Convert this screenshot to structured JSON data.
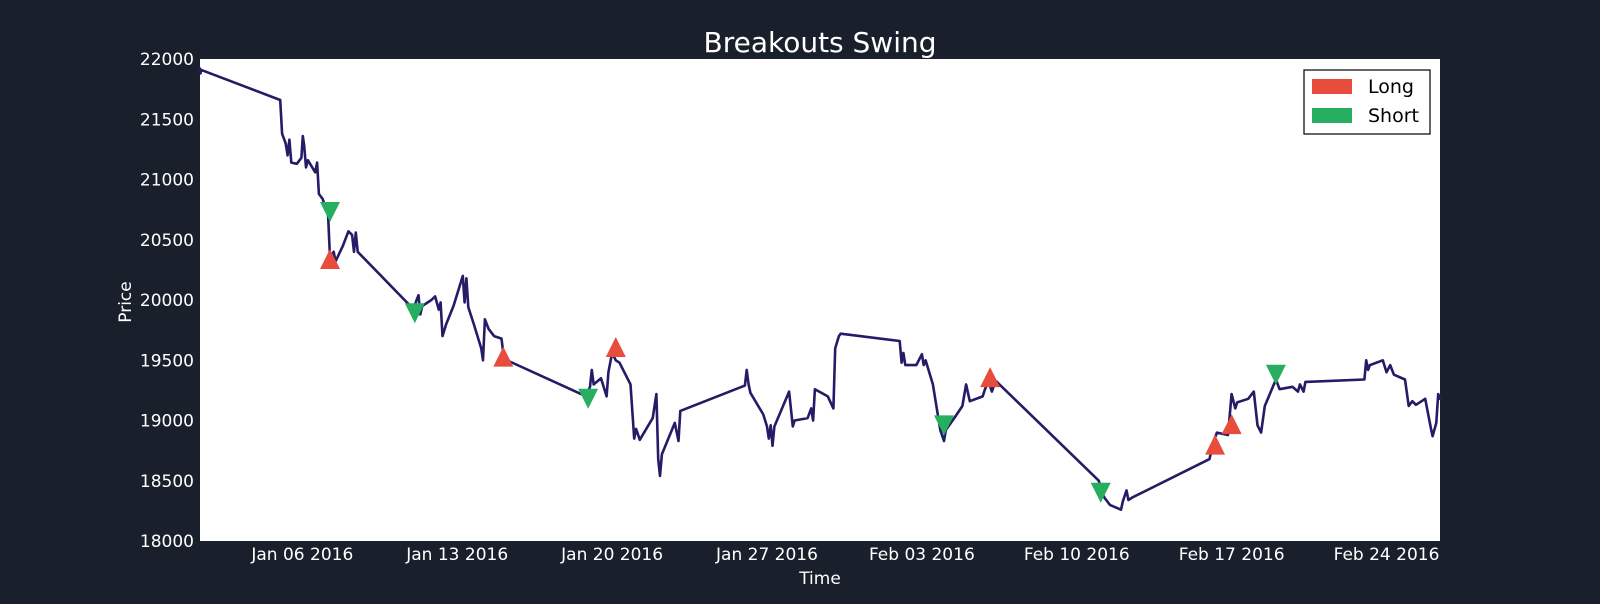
{
  "colors": {
    "background": "#19202b",
    "plot_background": "#ffffff",
    "price_line": "#241c66",
    "long_marker": "#e74c3c",
    "short_marker": "#27ae60",
    "text": "#ffffff"
  },
  "chart_data": {
    "type": "line",
    "title": "Breakouts Swing",
    "xlabel": "Time",
    "ylabel": "Price",
    "x_scale": "date",
    "xlim": [
      "2016-01-01 09:00",
      "2016-02-26 10:00"
    ],
    "ylim": [
      18000,
      22000
    ],
    "yticks": [
      18000,
      18500,
      19000,
      19500,
      20000,
      20500,
      21000,
      21500,
      22000
    ],
    "xticks": [
      {
        "date": "2016-01-06",
        "label": "Jan 06 2016"
      },
      {
        "date": "2016-01-13",
        "label": "Jan 13 2016"
      },
      {
        "date": "2016-01-20",
        "label": "Jan 20 2016"
      },
      {
        "date": "2016-01-27",
        "label": "Jan 27 2016"
      },
      {
        "date": "2016-02-03",
        "label": "Feb 03 2016"
      },
      {
        "date": "2016-02-10",
        "label": "Feb 10 2016"
      },
      {
        "date": "2016-02-17",
        "label": "Feb 17 2016"
      },
      {
        "date": "2016-02-24",
        "label": "Feb 24 2016"
      }
    ],
    "grid": false,
    "legend_position": "top-right",
    "series": [
      {
        "name": "Price",
        "points": [
          [
            "2016-01-01 09:00",
            21920
          ],
          [
            "2016-01-01 09:30",
            21880
          ],
          [
            "2016-01-01 10:00",
            21910
          ],
          [
            "2016-01-05 00:00",
            21660
          ],
          [
            "2016-01-05 02:00",
            21380
          ],
          [
            "2016-01-05 06:00",
            21300
          ],
          [
            "2016-01-05 08:00",
            21200
          ],
          [
            "2016-01-05 10:00",
            21330
          ],
          [
            "2016-01-05 12:00",
            21140
          ],
          [
            "2016-01-05 18:00",
            21130
          ],
          [
            "2016-01-05 23:00",
            21180
          ],
          [
            "2016-01-06 00:30",
            21360
          ],
          [
            "2016-01-06 02:00",
            21280
          ],
          [
            "2016-01-06 04:00",
            21100
          ],
          [
            "2016-01-06 06:00",
            21160
          ],
          [
            "2016-01-06 14:00",
            21060
          ],
          [
            "2016-01-06 16:00",
            21140
          ],
          [
            "2016-01-06 18:00",
            20880
          ],
          [
            "2016-01-06 22:00",
            20840
          ],
          [
            "2016-01-07 04:00",
            20700
          ],
          [
            "2016-01-07 06:00",
            20350
          ],
          [
            "2016-01-07 10:00",
            20400
          ],
          [
            "2016-01-07 12:00",
            20320
          ],
          [
            "2016-01-07 20:00",
            20450
          ],
          [
            "2016-01-08 02:00",
            20570
          ],
          [
            "2016-01-08 06:00",
            20540
          ],
          [
            "2016-01-08 08:00",
            20400
          ],
          [
            "2016-01-08 10:00",
            20560
          ],
          [
            "2016-01-08 12:00",
            20400
          ],
          [
            "2016-01-11 01:00",
            19920
          ],
          [
            "2016-01-11 03:00",
            19980
          ],
          [
            "2016-01-11 06:00",
            20040
          ],
          [
            "2016-01-11 08:00",
            19880
          ],
          [
            "2016-01-11 10:00",
            19950
          ],
          [
            "2016-01-11 20:00",
            20000
          ],
          [
            "2016-01-12 00:00",
            20030
          ],
          [
            "2016-01-12 04:00",
            19920
          ],
          [
            "2016-01-12 06:00",
            19980
          ],
          [
            "2016-01-12 08:00",
            19700
          ],
          [
            "2016-01-12 12:00",
            19800
          ],
          [
            "2016-01-12 20:00",
            19950
          ],
          [
            "2016-01-13 02:00",
            20100
          ],
          [
            "2016-01-13 06:00",
            20200
          ],
          [
            "2016-01-13 08:00",
            19980
          ],
          [
            "2016-01-13 10:00",
            20180
          ],
          [
            "2016-01-13 12:00",
            19940
          ],
          [
            "2016-01-13 18:00",
            19800
          ],
          [
            "2016-01-14 02:00",
            19600
          ],
          [
            "2016-01-14 04:00",
            19500
          ],
          [
            "2016-01-14 06:00",
            19840
          ],
          [
            "2016-01-14 10:00",
            19760
          ],
          [
            "2016-01-14 16:00",
            19700
          ],
          [
            "2016-01-15 00:00",
            19680
          ],
          [
            "2016-01-15 02:00",
            19560
          ],
          [
            "2016-01-15 06:00",
            19500
          ],
          [
            "2016-01-18 20:00",
            19200
          ],
          [
            "2016-01-19 00:00",
            19280
          ],
          [
            "2016-01-19 02:00",
            19420
          ],
          [
            "2016-01-19 04:00",
            19300
          ],
          [
            "2016-01-19 12:00",
            19350
          ],
          [
            "2016-01-19 18:00",
            19200
          ],
          [
            "2016-01-19 20:00",
            19400
          ],
          [
            "2016-01-20 00:00",
            19560
          ],
          [
            "2016-01-20 04:00",
            19500
          ],
          [
            "2016-01-20 08:00",
            19480
          ],
          [
            "2016-01-20 20:00",
            19300
          ],
          [
            "2016-01-21 00:00",
            18850
          ],
          [
            "2016-01-21 02:00",
            18930
          ],
          [
            "2016-01-21 06:00",
            18840
          ],
          [
            "2016-01-21 20:00",
            19020
          ],
          [
            "2016-01-22 00:00",
            19220
          ],
          [
            "2016-01-22 02:00",
            18680
          ],
          [
            "2016-01-22 04:00",
            18540
          ],
          [
            "2016-01-22 06:00",
            18720
          ],
          [
            "2016-01-22 20:00",
            18980
          ],
          [
            "2016-01-23 00:00",
            18830
          ],
          [
            "2016-01-23 02:00",
            19080
          ],
          [
            "2016-01-26 00:00",
            19290
          ],
          [
            "2016-01-26 02:00",
            19420
          ],
          [
            "2016-01-26 04:00",
            19300
          ],
          [
            "2016-01-26 06:00",
            19230
          ],
          [
            "2016-01-26 20:00",
            19050
          ],
          [
            "2016-01-27 00:00",
            18950
          ],
          [
            "2016-01-27 02:00",
            18850
          ],
          [
            "2016-01-27 04:00",
            18960
          ],
          [
            "2016-01-27 06:00",
            18790
          ],
          [
            "2016-01-27 08:00",
            18950
          ],
          [
            "2016-01-28 00:00",
            19240
          ],
          [
            "2016-01-28 04:00",
            18950
          ],
          [
            "2016-01-28 06:00",
            19000
          ],
          [
            "2016-01-28 20:00",
            19020
          ],
          [
            "2016-01-29 00:00",
            19100
          ],
          [
            "2016-01-29 02:00",
            19000
          ],
          [
            "2016-01-29 04:00",
            19260
          ],
          [
            "2016-01-29 18:00",
            19200
          ],
          [
            "2016-01-30 00:00",
            19100
          ],
          [
            "2016-01-30 02:00",
            19600
          ],
          [
            "2016-01-30 06:00",
            19700
          ],
          [
            "2016-01-30 08:00",
            19720
          ],
          [
            "2016-02-02 00:00",
            19660
          ],
          [
            "2016-02-02 02:00",
            19480
          ],
          [
            "2016-02-02 04:00",
            19560
          ],
          [
            "2016-02-02 06:00",
            19460
          ],
          [
            "2016-02-02 18:00",
            19460
          ],
          [
            "2016-02-03 00:00",
            19550
          ],
          [
            "2016-02-03 02:00",
            19460
          ],
          [
            "2016-02-03 04:00",
            19500
          ],
          [
            "2016-02-03 12:00",
            19300
          ],
          [
            "2016-02-03 20:00",
            18920
          ],
          [
            "2016-02-04 00:00",
            18830
          ],
          [
            "2016-02-04 02:00",
            18920
          ],
          [
            "2016-02-04 12:00",
            19030
          ],
          [
            "2016-02-04 20:00",
            19120
          ],
          [
            "2016-02-05 00:00",
            19300
          ],
          [
            "2016-02-05 04:00",
            19160
          ],
          [
            "2016-02-05 18:00",
            19200
          ],
          [
            "2016-02-05 20:00",
            19250
          ],
          [
            "2016-02-06 00:00",
            19330
          ],
          [
            "2016-02-06 04:00",
            19240
          ],
          [
            "2016-02-06 08:00",
            19330
          ],
          [
            "2016-02-11 00:00",
            18500
          ],
          [
            "2016-02-11 02:00",
            18420
          ],
          [
            "2016-02-11 06:00",
            18360
          ],
          [
            "2016-02-11 12:00",
            18300
          ],
          [
            "2016-02-12 00:00",
            18260
          ],
          [
            "2016-02-12 02:00",
            18330
          ],
          [
            "2016-02-12 06:00",
            18420
          ],
          [
            "2016-02-12 08:00",
            18340
          ],
          [
            "2016-02-12 12:00",
            18360
          ],
          [
            "2016-02-16 00:00",
            18680
          ],
          [
            "2016-02-16 04:00",
            18820
          ],
          [
            "2016-02-16 08:00",
            18900
          ],
          [
            "2016-02-16 20:00",
            18880
          ],
          [
            "2016-02-17 00:00",
            19220
          ],
          [
            "2016-02-17 04:00",
            19100
          ],
          [
            "2016-02-17 06:00",
            19150
          ],
          [
            "2016-02-17 18:00",
            19180
          ],
          [
            "2016-02-18 00:00",
            19240
          ],
          [
            "2016-02-18 04:00",
            18960
          ],
          [
            "2016-02-18 08:00",
            18900
          ],
          [
            "2016-02-18 12:00",
            19120
          ],
          [
            "2016-02-19 00:00",
            19340
          ],
          [
            "2016-02-19 04:00",
            19260
          ],
          [
            "2016-02-19 18:00",
            19280
          ],
          [
            "2016-02-20 00:00",
            19240
          ],
          [
            "2016-02-20 02:00",
            19300
          ],
          [
            "2016-02-20 06:00",
            19240
          ],
          [
            "2016-02-20 08:00",
            19320
          ],
          [
            "2016-02-23 00:00",
            19340
          ],
          [
            "2016-02-23 02:00",
            19500
          ],
          [
            "2016-02-23 04:00",
            19420
          ],
          [
            "2016-02-23 06:00",
            19460
          ],
          [
            "2016-02-23 20:00",
            19500
          ],
          [
            "2016-02-24 00:00",
            19400
          ],
          [
            "2016-02-24 04:00",
            19460
          ],
          [
            "2016-02-24 08:00",
            19380
          ],
          [
            "2016-02-24 20:00",
            19340
          ],
          [
            "2016-02-25 00:00",
            19120
          ],
          [
            "2016-02-25 04:00",
            19160
          ],
          [
            "2016-02-25 08:00",
            19130
          ],
          [
            "2016-02-25 18:00",
            19180
          ],
          [
            "2016-02-26 00:00",
            18940
          ],
          [
            "2016-02-26 02:00",
            18870
          ],
          [
            "2016-02-26 06:00",
            18980
          ],
          [
            "2016-02-26 08:00",
            19220
          ],
          [
            "2016-02-26 10:00",
            19180
          ]
        ]
      }
    ],
    "legend": [
      {
        "label": "Long",
        "color": "#e74c3c",
        "marker": "triangle-up"
      },
      {
        "label": "Short",
        "color": "#27ae60",
        "marker": "triangle-down"
      }
    ],
    "signals": [
      {
        "type": "short",
        "time": "2016-01-07 06:00",
        "price": 20730
      },
      {
        "type": "long",
        "time": "2016-01-07 06:00",
        "price": 20340
      },
      {
        "type": "short",
        "time": "2016-01-11 02:00",
        "price": 19890
      },
      {
        "type": "long",
        "time": "2016-01-15 02:00",
        "price": 19530
      },
      {
        "type": "short",
        "time": "2016-01-18 22:00",
        "price": 19180
      },
      {
        "type": "long",
        "time": "2016-01-20 04:00",
        "price": 19610
      },
      {
        "type": "short",
        "time": "2016-02-04 00:00",
        "price": 18960
      },
      {
        "type": "long",
        "time": "2016-02-06 02:00",
        "price": 19360
      },
      {
        "type": "short",
        "time": "2016-02-11 02:00",
        "price": 18400
      },
      {
        "type": "long",
        "time": "2016-02-16 06:00",
        "price": 18800
      },
      {
        "type": "long",
        "time": "2016-02-17 00:00",
        "price": 18970
      },
      {
        "type": "short",
        "time": "2016-02-19 00:00",
        "price": 19380
      }
    ]
  }
}
